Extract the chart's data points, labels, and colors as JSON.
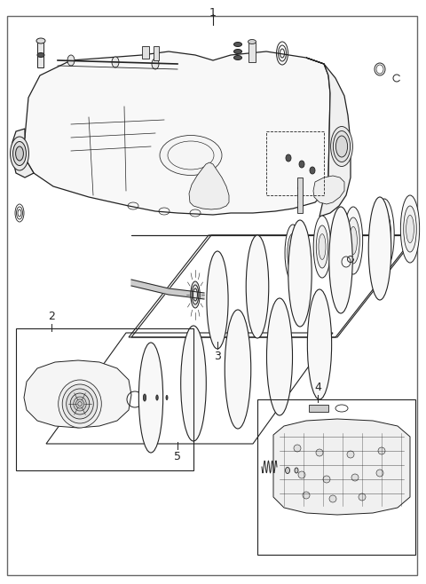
{
  "bg_color": "#ffffff",
  "border_color": "#555555",
  "line_color": "#222222",
  "label_color": "#111111",
  "fig_width": 4.8,
  "fig_height": 6.58,
  "dpi": 100
}
